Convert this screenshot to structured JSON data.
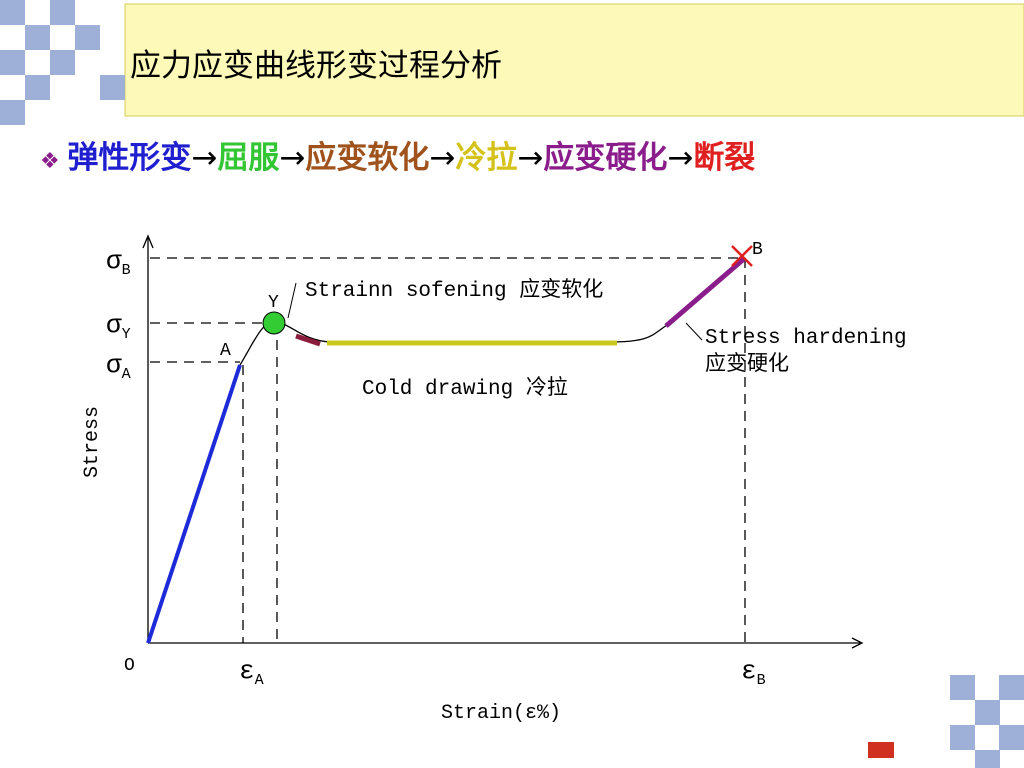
{
  "header": {
    "title": "应力应变曲线形变过程分析"
  },
  "bullet": {
    "segments": [
      "弹性形变",
      "→",
      "屈服",
      "→",
      "应变软化",
      "→",
      "冷拉",
      "→",
      "应变硬化",
      "→",
      "断裂"
    ]
  },
  "diagram": {
    "y_labels": [
      {
        "symbol": "σ",
        "sub": "B"
      },
      {
        "symbol": "σ",
        "sub": "Y"
      },
      {
        "symbol": "σ",
        "sub": "A"
      }
    ],
    "x_labels": [
      {
        "symbol": "ε",
        "sub": "A"
      },
      {
        "symbol": "ε",
        "sub": "B"
      }
    ],
    "origin": "O",
    "point_labels": [
      "A",
      "Y",
      "B"
    ],
    "y_axis_label": "Stress",
    "x_axis_label": "Strain(ε%)",
    "annotations": [
      "Strainn sofening 应变软化",
      "Cold drawing 冷拉",
      "Stress hardening",
      "应变硬化"
    ]
  }
}
